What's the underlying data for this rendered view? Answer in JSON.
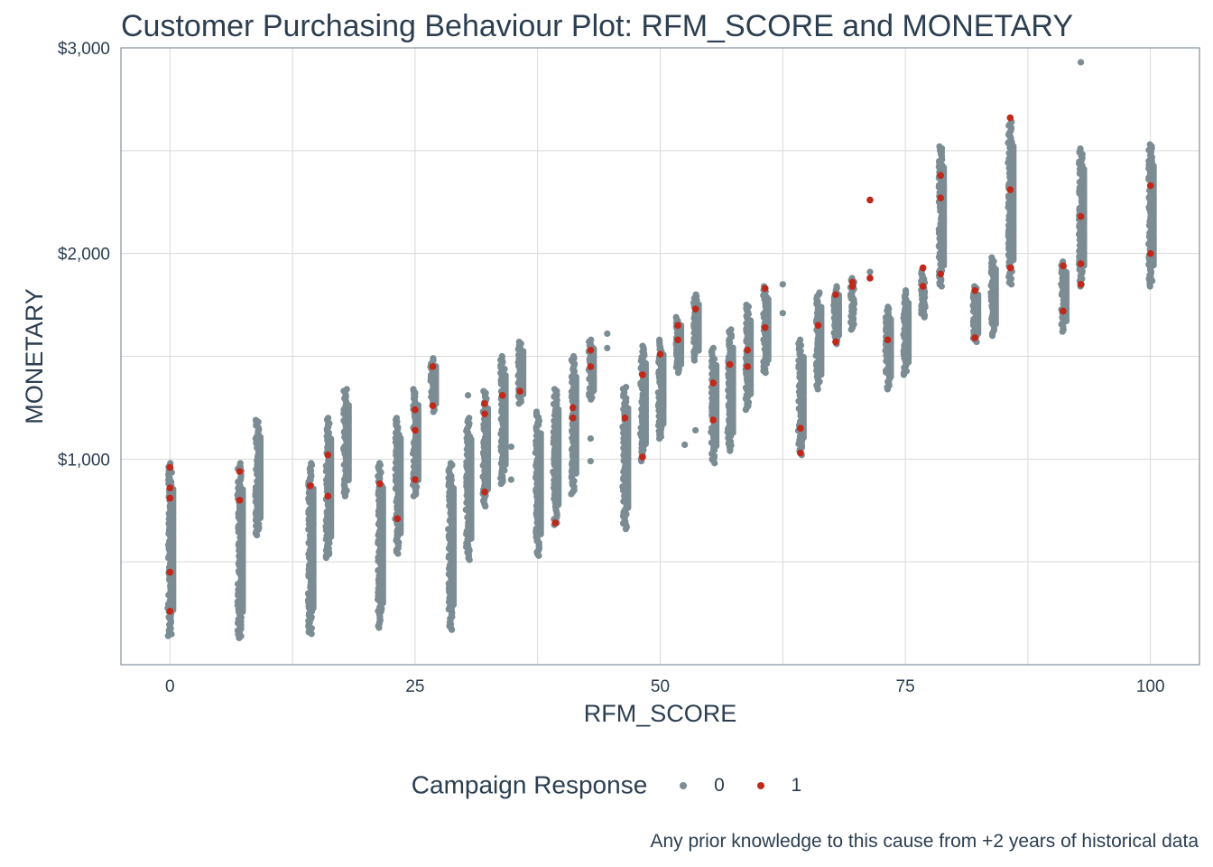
{
  "chart_data": {
    "type": "scatter",
    "title": "Customer Purchasing Behaviour Plot: RFM_SCORE and MONETARY",
    "xlabel": "RFM_SCORE",
    "ylabel": "MONETARY",
    "caption": "Any prior knowledge to this cause from +2 years of historical data",
    "xlim": [
      -5,
      105
    ],
    "ylim": [
      0,
      3000
    ],
    "x_ticks": [
      0,
      25,
      50,
      75,
      100
    ],
    "x_tick_labels": [
      "0",
      "25",
      "50",
      "75",
      "100"
    ],
    "y_ticks": [
      1000,
      2000,
      3000
    ],
    "y_tick_labels": [
      "$1,000",
      "$2,000",
      "$3,000"
    ],
    "grid": true,
    "legend_position": "bottom",
    "legend_title": "Campaign Response",
    "series": [
      {
        "name": "0",
        "color": "#7b8c93"
      },
      {
        "name": "1",
        "color": "#c0281a"
      }
    ],
    "columns": [
      {
        "x": 0,
        "min": 140,
        "max": 980,
        "resp": [
          260,
          450,
          810,
          860,
          960
        ]
      },
      {
        "x": 7.1,
        "min": 130,
        "max": 980,
        "resp": [
          800,
          940
        ]
      },
      {
        "x": 8.9,
        "min": 630,
        "max": 1190,
        "resp": []
      },
      {
        "x": 14.3,
        "min": 150,
        "max": 980,
        "resp": [
          870
        ]
      },
      {
        "x": 16.1,
        "min": 520,
        "max": 1200,
        "resp": [
          820,
          1020
        ]
      },
      {
        "x": 17.9,
        "min": 820,
        "max": 1340,
        "resp": []
      },
      {
        "x": 21.4,
        "min": 180,
        "max": 980,
        "resp": [
          880
        ]
      },
      {
        "x": 23.2,
        "min": 540,
        "max": 1200,
        "resp": [
          710
        ]
      },
      {
        "x": 25,
        "min": 820,
        "max": 1340,
        "resp": [
          900,
          1140,
          1240
        ]
      },
      {
        "x": 26.8,
        "min": 1230,
        "max": 1490,
        "resp": [
          1260,
          1450
        ]
      },
      {
        "x": 28.6,
        "min": 170,
        "max": 980,
        "resp": []
      },
      {
        "x": 30.4,
        "min": 510,
        "max": 1200,
        "resp": []
      },
      {
        "x": 32.1,
        "min": 770,
        "max": 1330,
        "resp": [
          840,
          1220,
          1270
        ]
      },
      {
        "x": 33.9,
        "min": 880,
        "max": 1500,
        "resp": [
          1310
        ]
      },
      {
        "x": 35.7,
        "min": 1270,
        "max": 1570,
        "resp": [
          1330
        ]
      },
      {
        "x": 37.5,
        "min": 530,
        "max": 1230,
        "resp": []
      },
      {
        "x": 39.3,
        "min": 680,
        "max": 1340,
        "resp": [
          690
        ]
      },
      {
        "x": 41.1,
        "min": 830,
        "max": 1500,
        "resp": [
          1200,
          1250
        ]
      },
      {
        "x": 42.9,
        "min": 1290,
        "max": 1580,
        "resp": [
          1450,
          1530
        ]
      },
      {
        "x": 46.4,
        "min": 660,
        "max": 1350,
        "resp": [
          1200
        ]
      },
      {
        "x": 48.2,
        "min": 990,
        "max": 1550,
        "resp": [
          1010,
          1410
        ]
      },
      {
        "x": 50,
        "min": 1100,
        "max": 1580,
        "resp": [
          1510
        ]
      },
      {
        "x": 51.8,
        "min": 1420,
        "max": 1690,
        "resp": [
          1580,
          1650
        ]
      },
      {
        "x": 53.6,
        "min": 1480,
        "max": 1800,
        "resp": [
          1730
        ]
      },
      {
        "x": 55.4,
        "min": 980,
        "max": 1540,
        "resp": [
          1190,
          1370
        ]
      },
      {
        "x": 57.1,
        "min": 1040,
        "max": 1630,
        "resp": [
          1460
        ]
      },
      {
        "x": 58.9,
        "min": 1240,
        "max": 1750,
        "resp": [
          1450,
          1530
        ]
      },
      {
        "x": 60.7,
        "min": 1420,
        "max": 1840,
        "resp": [
          1640,
          1830
        ]
      },
      {
        "x": 64.3,
        "min": 1020,
        "max": 1580,
        "resp": [
          1030,
          1150
        ]
      },
      {
        "x": 66.1,
        "min": 1340,
        "max": 1810,
        "resp": [
          1650
        ]
      },
      {
        "x": 67.9,
        "min": 1560,
        "max": 1840,
        "resp": [
          1570,
          1800
        ]
      },
      {
        "x": 69.6,
        "min": 1630,
        "max": 1880,
        "resp": [
          1840,
          1860
        ]
      },
      {
        "x": 73.2,
        "min": 1340,
        "max": 1740,
        "resp": [
          1580
        ]
      },
      {
        "x": 75,
        "min": 1410,
        "max": 1820,
        "resp": []
      },
      {
        "x": 76.8,
        "min": 1690,
        "max": 1920,
        "resp": [
          1840,
          1930
        ]
      },
      {
        "x": 78.6,
        "min": 1840,
        "max": 2520,
        "resp": [
          1900,
          2270,
          2380
        ]
      },
      {
        "x": 82.1,
        "min": 1570,
        "max": 1840,
        "resp": [
          1590,
          1820
        ]
      },
      {
        "x": 83.9,
        "min": 1600,
        "max": 1980,
        "resp": []
      },
      {
        "x": 85.7,
        "min": 1850,
        "max": 2640,
        "resp": [
          1930,
          2310,
          2660
        ]
      },
      {
        "x": 91.1,
        "min": 1620,
        "max": 1960,
        "resp": [
          1720,
          1940
        ]
      },
      {
        "x": 92.9,
        "min": 1840,
        "max": 2510,
        "resp": [
          1850,
          1950,
          2180
        ]
      },
      {
        "x": 100,
        "min": 1840,
        "max": 2530,
        "resp": [
          2000,
          2330
        ]
      }
    ],
    "isolated_points": [
      {
        "x": 71.4,
        "y": 2260,
        "series": "1"
      },
      {
        "x": 71.4,
        "y": 1880,
        "series": "1"
      },
      {
        "x": 71.4,
        "y": 1910,
        "series": "0"
      },
      {
        "x": 92.9,
        "y": 2930,
        "series": "0"
      },
      {
        "x": 62.5,
        "y": 1850,
        "series": "0"
      },
      {
        "x": 62.5,
        "y": 1710,
        "series": "0"
      },
      {
        "x": 48.2,
        "y": 1550,
        "series": "0"
      },
      {
        "x": 53.6,
        "y": 1140,
        "series": "0"
      },
      {
        "x": 52.5,
        "y": 1070,
        "series": "0"
      },
      {
        "x": 44.6,
        "y": 1610,
        "series": "0"
      },
      {
        "x": 44.6,
        "y": 1540,
        "series": "0"
      },
      {
        "x": 42.9,
        "y": 1100,
        "series": "0"
      },
      {
        "x": 42.9,
        "y": 990,
        "series": "0"
      },
      {
        "x": 34.8,
        "y": 1060,
        "series": "0"
      },
      {
        "x": 34.8,
        "y": 900,
        "series": "0"
      },
      {
        "x": 30.4,
        "y": 1310,
        "series": "0"
      }
    ]
  }
}
